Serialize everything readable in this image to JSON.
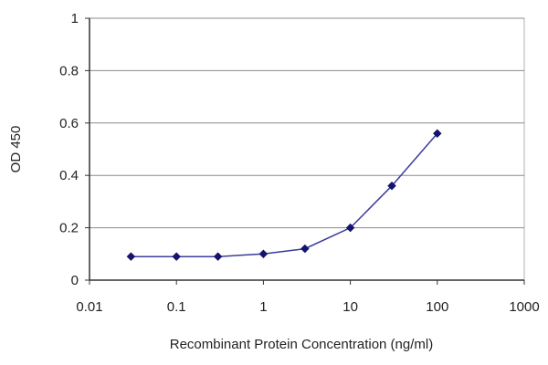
{
  "chart_data": {
    "type": "line",
    "title": "",
    "xlabel": "Recombinant Protein Concentration (ng/ml)",
    "ylabel": "OD 450",
    "x_scale": "log",
    "xlim": [
      0.01,
      1000
    ],
    "ylim": [
      0,
      1
    ],
    "x_ticks": [
      "0.01",
      "0.1",
      "1",
      "10",
      "100",
      "1000"
    ],
    "y_ticks": [
      "0",
      "0.2",
      "0.4",
      "0.6",
      "0.8",
      "1"
    ],
    "grid": "horizontal",
    "legend": "none",
    "series": [
      {
        "x": [
          0.03,
          0.1,
          0.3,
          1,
          3,
          10,
          30,
          100
        ],
        "y": [
          0.09,
          0.09,
          0.09,
          0.1,
          0.12,
          0.2,
          0.36,
          0.56
        ]
      }
    ],
    "colors": {
      "line": "#3b3b9c",
      "marker": "#14146e",
      "plot_border": "#b0b0b0",
      "grid": "#8c8c8c",
      "axis": "#333333"
    }
  }
}
